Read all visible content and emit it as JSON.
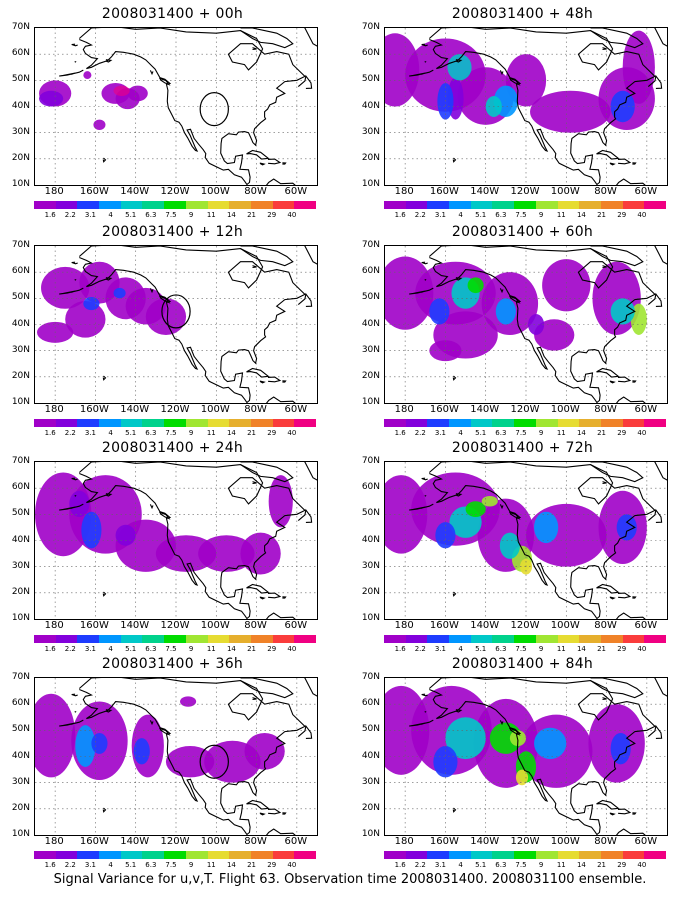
{
  "panels": [
    {
      "title": "2008031400 + 00h"
    },
    {
      "title": "2008031400 + 48h"
    },
    {
      "title": "2008031400 + 12h"
    },
    {
      "title": "2008031400 + 60h"
    },
    {
      "title": "2008031400 + 24h"
    },
    {
      "title": "2008031400 + 72h"
    },
    {
      "title": "2008031400 + 36h"
    },
    {
      "title": "2008031400 + 84h"
    }
  ],
  "lat_labels": [
    "70N",
    "60N",
    "50N",
    "40N",
    "30N",
    "20N",
    "10N"
  ],
  "lon_labels": [
    "180",
    "160W",
    "140W",
    "120W",
    "100W",
    "80W",
    "60W"
  ],
  "colorbar": {
    "levels": [
      "1.6",
      "2.2",
      "3.1",
      "4",
      "5.1",
      "6.3",
      "7.5",
      "9",
      "11",
      "14",
      "21",
      "29",
      "40"
    ],
    "colors": [
      "#a000c8",
      "#8200dc",
      "#1e3cff",
      "#0096ff",
      "#00c8c8",
      "#00d28c",
      "#00dc00",
      "#a0e632",
      "#e6dc32",
      "#e6af2d",
      "#f08228",
      "#fa3c3c",
      "#f00082"
    ]
  },
  "caption": "Signal Variance for u,v,T. Flight 63. Observation time 2008031400. 2008031100 ensemble."
}
